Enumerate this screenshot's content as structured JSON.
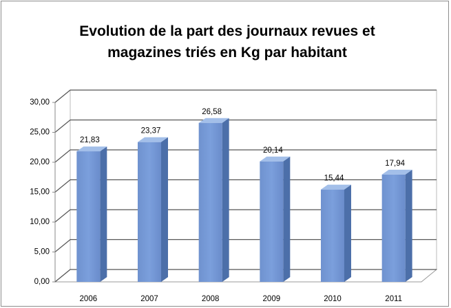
{
  "chart_data": {
    "type": "bar3d",
    "title": "Evolution de la part des journaux revues et magazines triés en Kg par habitant",
    "categories": [
      "2006",
      "2007",
      "2008",
      "2009",
      "2010",
      "2011"
    ],
    "values": [
      21.83,
      23.37,
      26.58,
      20.14,
      15.44,
      17.94
    ],
    "value_labels": [
      "21,83",
      "23,37",
      "26,58",
      "20,14",
      "15,44",
      "17,94"
    ],
    "color": "#7b9fdc",
    "ylim": [
      0,
      30
    ],
    "yticks": [
      {
        "value": 0,
        "label": "0,00"
      },
      {
        "value": 5,
        "label": "5,00"
      },
      {
        "value": 10,
        "label": "10,00"
      },
      {
        "value": 15,
        "label": "15,00"
      },
      {
        "value": 20,
        "label": "20,00"
      },
      {
        "value": 25,
        "label": "25,00"
      },
      {
        "value": 30,
        "label": "30,00"
      }
    ],
    "grid": true
  }
}
